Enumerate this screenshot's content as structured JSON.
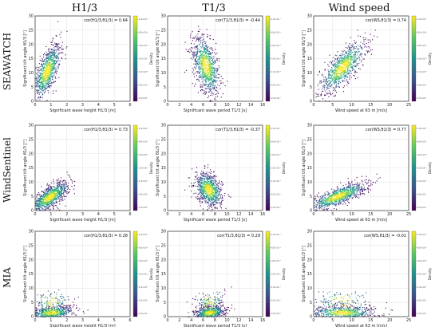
{
  "column_titles": [
    "H1/3",
    "T1/3",
    "Wind speed"
  ],
  "row_titles": [
    "SEAWATCH",
    "WindSentinel",
    "MIA"
  ],
  "colorbar_label": "Density",
  "colorbar_ticks": [
    "1.6×10⁻²",
    "8.0×10⁻³",
    "4.0×10⁻³",
    "2.0×10⁻³",
    "1.0×10⁻³",
    "5.0×10⁻⁴",
    "2.5×10⁻⁴"
  ],
  "chart_data": [
    {
      "type": "heatmap",
      "row": "SEAWATCH",
      "col": "H1/3",
      "xlabel": "Significant wave height H1/3 [m]",
      "ylabel": "Significant tilt angle θ1/3 [°]",
      "xlim": [
        0,
        6
      ],
      "ylim": [
        0,
        30
      ],
      "xticks": [
        0,
        1,
        2,
        3,
        4,
        5,
        6
      ],
      "yticks": [
        0,
        5,
        10,
        15,
        20,
        25,
        30
      ],
      "annotation": "cor(H1/3,θ1/3) = 0.64",
      "correlation": 0.64
    },
    {
      "type": "heatmap",
      "row": "SEAWATCH",
      "col": "T1/3",
      "xlabel": "Significant wave period T1/3 [s]",
      "ylabel": "Significant tilt angle θ1/3 [°]",
      "xlim": [
        0,
        16
      ],
      "ylim": [
        0,
        30
      ],
      "xticks": [
        0,
        2,
        4,
        6,
        8,
        10,
        12,
        14,
        16
      ],
      "yticks": [
        0,
        5,
        10,
        15,
        20,
        25,
        30
      ],
      "annotation": "cor(T1/3,θ1/3) = -0.44",
      "correlation": -0.44
    },
    {
      "type": "heatmap",
      "row": "SEAWATCH",
      "col": "Wind speed",
      "xlabel": "Wind speed at 63 m [m/s]",
      "ylabel": "Significant tilt angle θ1/3 [°]",
      "xlim": [
        0,
        25
      ],
      "ylim": [
        0,
        30
      ],
      "xticks": [
        0,
        5,
        10,
        15,
        20,
        25
      ],
      "yticks": [
        0,
        5,
        10,
        15,
        20,
        25,
        30
      ],
      "annotation": "cor(WS,θ1/3) = 0.74",
      "correlation": 0.74
    },
    {
      "type": "heatmap",
      "row": "WindSentinel",
      "col": "H1/3",
      "xlabel": "Significant wave height H1/3 [m]",
      "ylabel": "Significant tilt angle θ1/3 [°]",
      "xlim": [
        0,
        6
      ],
      "ylim": [
        0,
        30
      ],
      "xticks": [
        0,
        1,
        2,
        3,
        4,
        5,
        6
      ],
      "yticks": [
        0,
        5,
        10,
        15,
        20,
        25,
        30
      ],
      "annotation": "cor(H1/3,θ1/3) = 0.73",
      "correlation": 0.73
    },
    {
      "type": "heatmap",
      "row": "WindSentinel",
      "col": "T1/3",
      "xlabel": "Significant wave period T1/3 [s]",
      "ylabel": "Significant tilt angle θ1/3 [°]",
      "xlim": [
        0,
        16
      ],
      "ylim": [
        0,
        30
      ],
      "xticks": [
        0,
        2,
        4,
        6,
        8,
        10,
        12,
        14,
        16
      ],
      "yticks": [
        0,
        5,
        10,
        15,
        20,
        25,
        30
      ],
      "annotation": "cor(T1/3,θ1/3) = -0.37",
      "correlation": -0.37
    },
    {
      "type": "heatmap",
      "row": "WindSentinel",
      "col": "Wind speed",
      "xlabel": "Wind speed at 63 m [m/s]",
      "ylabel": "Significant tilt angle θ1/3 [°]",
      "xlim": [
        0,
        25
      ],
      "ylim": [
        0,
        30
      ],
      "xticks": [
        0,
        5,
        10,
        15,
        20,
        25
      ],
      "yticks": [
        0,
        5,
        10,
        15,
        20,
        25,
        30
      ],
      "annotation": "cor(WS,θ1/3) = 0.77",
      "correlation": 0.77
    },
    {
      "type": "heatmap",
      "row": "MIA",
      "col": "H1/3",
      "xlabel": "Significant wave height H1/3 [m]",
      "ylabel": "Significant tilt angle θ1/3 [°]",
      "xlim": [
        0,
        6
      ],
      "ylim": [
        0,
        30
      ],
      "xticks": [
        0,
        1,
        2,
        3,
        4,
        5,
        6
      ],
      "yticks": [
        0,
        5,
        10,
        15,
        20,
        25,
        30
      ],
      "annotation": "cor(H1/3,θ1/3) = 0.28",
      "correlation": 0.28
    },
    {
      "type": "heatmap",
      "row": "MIA",
      "col": "T1/3",
      "xlabel": "Significant wave period T1/3 [s]",
      "ylabel": "Significant tilt angle θ1/3 [°]",
      "xlim": [
        0,
        16
      ],
      "ylim": [
        0,
        30
      ],
      "xticks": [
        0,
        2,
        4,
        6,
        8,
        10,
        12,
        14,
        16
      ],
      "yticks": [
        0,
        5,
        10,
        15,
        20,
        25,
        30
      ],
      "annotation": "cor(T1/3,θ1/3) = 0.29",
      "correlation": 0.29
    },
    {
      "type": "heatmap",
      "row": "MIA",
      "col": "Wind speed",
      "xlabel": "Wind speed at 63 m [m/s]",
      "ylabel": "Significant tilt angle θ1/3 [°]",
      "xlim": [
        0,
        25
      ],
      "ylim": [
        0,
        30
      ],
      "xticks": [
        0,
        5,
        10,
        15,
        20,
        25
      ],
      "yticks": [
        0,
        5,
        10,
        15,
        20,
        25,
        30
      ],
      "annotation": "cor(WS,θ1/3) = -0.01",
      "correlation": -0.01
    }
  ]
}
